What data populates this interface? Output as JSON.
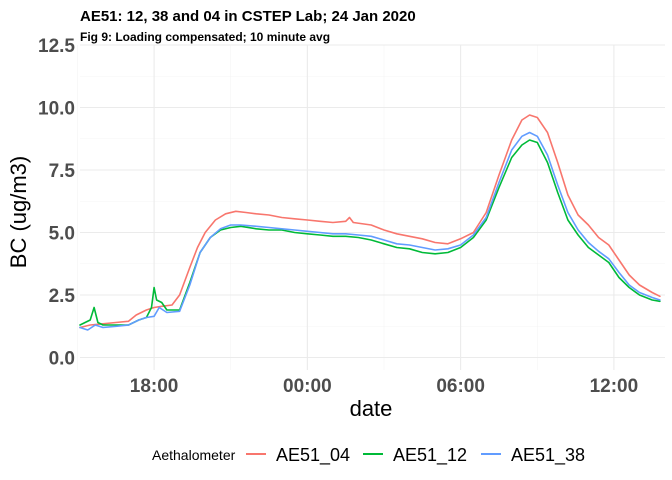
{
  "chart_data": {
    "type": "line",
    "title": "AE51: 12, 38 and 04 in CSTEP Lab; 24 Jan 2020",
    "subtitle": "Fig 9: Loading compensated; 10 minute avg",
    "xlabel": "date",
    "ylabel": "BC (ug/m3)",
    "x_unit": "hours relative to midnight 24 Jan 2020",
    "xlim": [
      -5.9,
      14.0
    ],
    "ylim": [
      -0.5,
      12.5
    ],
    "x_ticks": [
      {
        "value": -6,
        "label": "18:00"
      },
      {
        "value": 0,
        "label": "00:00"
      },
      {
        "value": 6,
        "label": "06:00"
      },
      {
        "value": 12,
        "label": "12:00"
      }
    ],
    "y_ticks": [
      {
        "value": 0,
        "label": "0.0"
      },
      {
        "value": 2.5,
        "label": "2.5"
      },
      {
        "value": 5,
        "label": "5.0"
      },
      {
        "value": 7.5,
        "label": "7.5"
      },
      {
        "value": 10,
        "label": "10.0"
      },
      {
        "value": 12.5,
        "label": "12.5"
      }
    ],
    "grid": true,
    "legend": {
      "title": "Aethalometer",
      "position": "bottom"
    },
    "series": [
      {
        "name": "AE51_04",
        "color": "#F8766D",
        "points": [
          [
            -8.9,
            1.2
          ],
          [
            -8.5,
            1.3
          ],
          [
            -8.0,
            1.35
          ],
          [
            -7.5,
            1.4
          ],
          [
            -7.0,
            1.45
          ],
          [
            -6.7,
            1.7
          ],
          [
            -6.3,
            1.9
          ],
          [
            -6.0,
            2.0
          ],
          [
            -5.7,
            2.05
          ],
          [
            -5.3,
            2.1
          ],
          [
            -5.0,
            2.5
          ],
          [
            -4.6,
            3.6
          ],
          [
            -4.3,
            4.4
          ],
          [
            -4.0,
            5.0
          ],
          [
            -3.6,
            5.5
          ],
          [
            -3.2,
            5.75
          ],
          [
            -2.8,
            5.85
          ],
          [
            -2.4,
            5.8
          ],
          [
            -2.0,
            5.75
          ],
          [
            -1.5,
            5.7
          ],
          [
            -1.0,
            5.6
          ],
          [
            -0.5,
            5.55
          ],
          [
            0.0,
            5.5
          ],
          [
            0.5,
            5.45
          ],
          [
            1.0,
            5.4
          ],
          [
            1.5,
            5.45
          ],
          [
            1.65,
            5.6
          ],
          [
            1.8,
            5.4
          ],
          [
            2.5,
            5.3
          ],
          [
            3.0,
            5.1
          ],
          [
            3.5,
            4.95
          ],
          [
            4.0,
            4.85
          ],
          [
            4.5,
            4.75
          ],
          [
            5.0,
            4.6
          ],
          [
            5.5,
            4.55
          ],
          [
            6.0,
            4.75
          ],
          [
            6.5,
            5.0
          ],
          [
            7.0,
            5.8
          ],
          [
            7.5,
            7.3
          ],
          [
            8.0,
            8.7
          ],
          [
            8.4,
            9.5
          ],
          [
            8.7,
            9.7
          ],
          [
            9.0,
            9.6
          ],
          [
            9.4,
            9.0
          ],
          [
            9.8,
            7.8
          ],
          [
            10.2,
            6.5
          ],
          [
            10.6,
            5.7
          ],
          [
            11.0,
            5.3
          ],
          [
            11.4,
            4.8
          ],
          [
            11.8,
            4.5
          ],
          [
            12.2,
            3.9
          ],
          [
            12.6,
            3.3
          ],
          [
            13.0,
            2.9
          ],
          [
            13.5,
            2.6
          ],
          [
            13.8,
            2.45
          ]
        ]
      },
      {
        "name": "AE51_12",
        "color": "#00BA38",
        "points": [
          [
            -8.9,
            1.3
          ],
          [
            -8.7,
            1.4
          ],
          [
            -8.5,
            1.5
          ],
          [
            -8.35,
            2.0
          ],
          [
            -8.2,
            1.4
          ],
          [
            -8.0,
            1.3
          ],
          [
            -7.5,
            1.3
          ],
          [
            -7.0,
            1.3
          ],
          [
            -6.6,
            1.5
          ],
          [
            -6.3,
            1.6
          ],
          [
            -6.1,
            2.0
          ],
          [
            -6.0,
            2.8
          ],
          [
            -5.9,
            2.3
          ],
          [
            -5.7,
            2.2
          ],
          [
            -5.5,
            1.9
          ],
          [
            -5.0,
            1.9
          ],
          [
            -4.6,
            3.0
          ],
          [
            -4.2,
            4.2
          ],
          [
            -3.8,
            4.8
          ],
          [
            -3.4,
            5.1
          ],
          [
            -3.0,
            5.2
          ],
          [
            -2.6,
            5.25
          ],
          [
            -2.0,
            5.15
          ],
          [
            -1.5,
            5.1
          ],
          [
            -1.0,
            5.1
          ],
          [
            -0.5,
            5.0
          ],
          [
            0.0,
            4.95
          ],
          [
            0.5,
            4.9
          ],
          [
            1.0,
            4.85
          ],
          [
            1.5,
            4.85
          ],
          [
            2.0,
            4.8
          ],
          [
            2.5,
            4.7
          ],
          [
            3.0,
            4.55
          ],
          [
            3.5,
            4.4
          ],
          [
            4.0,
            4.35
          ],
          [
            4.5,
            4.2
          ],
          [
            5.0,
            4.15
          ],
          [
            5.5,
            4.2
          ],
          [
            6.0,
            4.4
          ],
          [
            6.5,
            4.8
          ],
          [
            7.0,
            5.5
          ],
          [
            7.5,
            6.8
          ],
          [
            8.0,
            8.0
          ],
          [
            8.4,
            8.5
          ],
          [
            8.7,
            8.7
          ],
          [
            9.0,
            8.6
          ],
          [
            9.4,
            7.8
          ],
          [
            9.8,
            6.6
          ],
          [
            10.2,
            5.5
          ],
          [
            10.6,
            4.9
          ],
          [
            11.0,
            4.4
          ],
          [
            11.4,
            4.1
          ],
          [
            11.8,
            3.8
          ],
          [
            12.2,
            3.2
          ],
          [
            12.6,
            2.8
          ],
          [
            13.0,
            2.5
          ],
          [
            13.5,
            2.3
          ],
          [
            13.8,
            2.25
          ]
        ]
      },
      {
        "name": "AE51_38",
        "color": "#619CFF",
        "points": [
          [
            -8.9,
            1.2
          ],
          [
            -8.6,
            1.1
          ],
          [
            -8.3,
            1.3
          ],
          [
            -8.0,
            1.2
          ],
          [
            -7.5,
            1.25
          ],
          [
            -7.0,
            1.3
          ],
          [
            -6.6,
            1.5
          ],
          [
            -6.3,
            1.6
          ],
          [
            -6.0,
            1.65
          ],
          [
            -5.8,
            2.0
          ],
          [
            -5.5,
            1.8
          ],
          [
            -5.0,
            1.85
          ],
          [
            -4.6,
            2.9
          ],
          [
            -4.2,
            4.2
          ],
          [
            -3.8,
            4.8
          ],
          [
            -3.4,
            5.15
          ],
          [
            -3.0,
            5.3
          ],
          [
            -2.6,
            5.3
          ],
          [
            -2.0,
            5.25
          ],
          [
            -1.5,
            5.2
          ],
          [
            -1.0,
            5.15
          ],
          [
            -0.5,
            5.1
          ],
          [
            0.0,
            5.05
          ],
          [
            0.5,
            5.0
          ],
          [
            1.0,
            4.95
          ],
          [
            1.5,
            4.95
          ],
          [
            2.0,
            4.9
          ],
          [
            2.5,
            4.85
          ],
          [
            3.0,
            4.7
          ],
          [
            3.5,
            4.55
          ],
          [
            4.0,
            4.5
          ],
          [
            4.5,
            4.4
          ],
          [
            5.0,
            4.3
          ],
          [
            5.5,
            4.35
          ],
          [
            6.0,
            4.5
          ],
          [
            6.5,
            4.9
          ],
          [
            7.0,
            5.6
          ],
          [
            7.5,
            7.0
          ],
          [
            8.0,
            8.3
          ],
          [
            8.4,
            8.85
          ],
          [
            8.7,
            9.0
          ],
          [
            9.0,
            8.85
          ],
          [
            9.4,
            8.1
          ],
          [
            9.8,
            6.9
          ],
          [
            10.2,
            5.8
          ],
          [
            10.6,
            5.1
          ],
          [
            11.0,
            4.6
          ],
          [
            11.4,
            4.25
          ],
          [
            11.8,
            3.95
          ],
          [
            12.2,
            3.4
          ],
          [
            12.6,
            2.9
          ],
          [
            13.0,
            2.6
          ],
          [
            13.5,
            2.4
          ],
          [
            13.8,
            2.3
          ]
        ]
      }
    ]
  }
}
